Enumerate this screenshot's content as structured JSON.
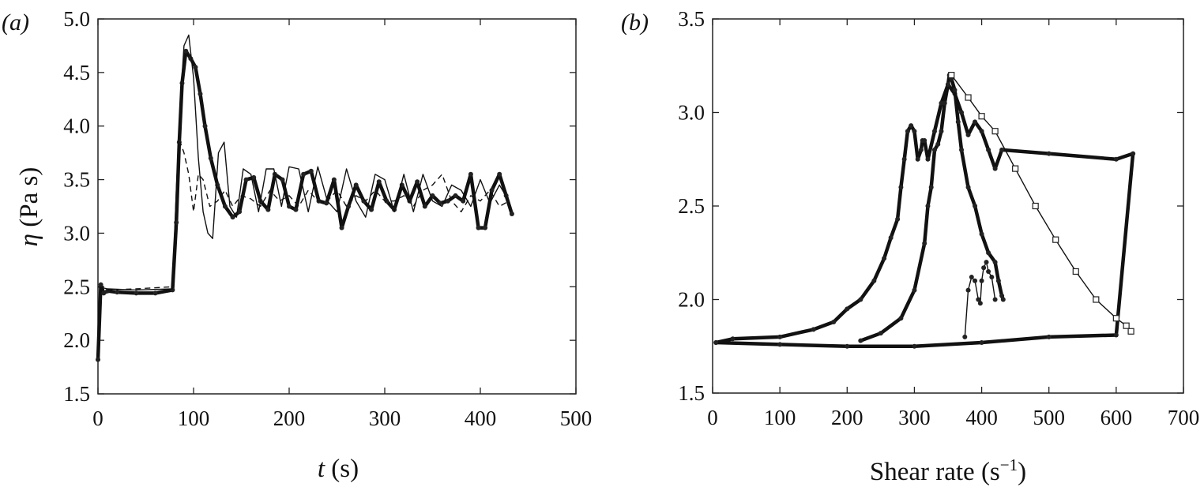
{
  "chart_data": [
    {
      "panel_label": "(a)",
      "type": "line",
      "xlabel_symbol": "t",
      "xlabel_unit": " (s)",
      "ylabel_symbol": "η",
      "ylabel_unit": " (Pa s)",
      "xlim": [
        0,
        500
      ],
      "ylim": [
        1.5,
        5.0
      ],
      "x_ticks": [
        0,
        100,
        200,
        300,
        400,
        500
      ],
      "y_ticks": [
        1.5,
        2.0,
        2.5,
        3.0,
        3.5,
        4.0,
        4.5,
        5.0
      ],
      "y_tick_labels": [
        "1.5",
        "2.0",
        "2.5",
        "3.0",
        "3.5",
        "4.0",
        "4.5",
        "5.0"
      ],
      "grid": false,
      "series": [
        {
          "style": "thick line with star markers",
          "x": [
            0,
            3,
            6,
            10,
            20,
            40,
            60,
            78,
            82,
            85,
            88,
            92,
            97,
            102,
            107,
            112,
            118,
            125,
            133,
            141,
            148,
            155,
            163,
            170,
            178,
            185,
            193,
            200,
            207,
            215,
            223,
            231,
            239,
            247,
            255,
            262,
            270,
            278,
            286,
            294,
            302,
            310,
            318,
            326,
            334,
            342,
            350,
            358,
            366,
            374,
            382,
            390,
            398,
            405,
            412,
            420,
            427,
            433
          ],
          "y": [
            1.82,
            2.52,
            2.44,
            2.46,
            2.45,
            2.44,
            2.44,
            2.47,
            3.1,
            3.85,
            4.4,
            4.7,
            4.63,
            4.55,
            4.3,
            4.0,
            3.7,
            3.45,
            3.25,
            3.15,
            3.2,
            3.5,
            3.52,
            3.3,
            3.22,
            3.55,
            3.5,
            3.25,
            3.22,
            3.55,
            3.58,
            3.3,
            3.28,
            3.5,
            3.05,
            3.25,
            3.45,
            3.3,
            3.22,
            3.48,
            3.3,
            3.22,
            3.45,
            3.3,
            3.48,
            3.25,
            3.35,
            3.28,
            3.3,
            3.35,
            3.3,
            3.55,
            3.05,
            3.05,
            3.4,
            3.55,
            3.35,
            3.18
          ]
        },
        {
          "style": "thin solid line",
          "x": [
            0,
            10,
            40,
            78,
            82,
            86,
            90,
            95,
            100,
            105,
            110,
            115,
            120,
            126,
            132,
            138,
            145,
            152,
            160,
            168,
            176,
            184,
            192,
            200,
            210,
            220,
            230,
            240,
            250,
            260,
            270,
            280,
            290,
            300,
            310,
            320,
            330,
            340,
            350,
            360,
            370,
            380,
            390,
            400,
            410,
            420,
            430
          ],
          "y": [
            2.5,
            2.48,
            2.47,
            2.48,
            3.4,
            4.2,
            4.75,
            4.85,
            4.45,
            3.7,
            3.2,
            3.0,
            2.95,
            3.75,
            3.85,
            3.25,
            3.15,
            3.6,
            3.55,
            3.2,
            3.6,
            3.6,
            3.25,
            3.62,
            3.6,
            3.2,
            3.62,
            3.3,
            3.2,
            3.6,
            3.3,
            3.15,
            3.55,
            3.5,
            3.2,
            3.55,
            3.2,
            3.55,
            3.3,
            3.25,
            3.45,
            3.4,
            3.25,
            3.5,
            3.28,
            3.45,
            3.3
          ]
        },
        {
          "style": "thin dashed line",
          "x": [
            0,
            10,
            40,
            78,
            82,
            86,
            90,
            95,
            100,
            105,
            110,
            117,
            125,
            133,
            141,
            150,
            160,
            170,
            180,
            190,
            200,
            210,
            220,
            230,
            240,
            250,
            260,
            270,
            280,
            290,
            300,
            310,
            320,
            330,
            340,
            350,
            360,
            370,
            380,
            390,
            400,
            410,
            420,
            430
          ],
          "y": [
            2.5,
            2.47,
            2.48,
            2.5,
            3.3,
            3.85,
            3.75,
            3.55,
            3.2,
            3.55,
            3.5,
            3.25,
            3.3,
            3.4,
            3.25,
            3.35,
            3.32,
            3.25,
            3.4,
            3.3,
            3.35,
            3.25,
            3.4,
            3.3,
            3.3,
            3.4,
            3.25,
            3.35,
            3.3,
            3.4,
            3.3,
            3.3,
            3.35,
            3.25,
            3.4,
            3.45,
            3.55,
            3.3,
            3.2,
            3.35,
            3.3,
            3.4,
            3.25,
            3.3
          ]
        }
      ]
    },
    {
      "panel_label": "(b)",
      "type": "scatter",
      "xlabel": "Shear rate (s",
      "xlabel_sup": "−1",
      "xlabel_close": ")",
      "xlim": [
        0,
        700
      ],
      "ylim": [
        1.5,
        3.5
      ],
      "x_ticks": [
        0,
        100,
        200,
        300,
        400,
        500,
        600,
        700
      ],
      "y_ticks": [
        1.5,
        2.0,
        2.5,
        3.0,
        3.5
      ],
      "y_tick_labels": [
        "1.5",
        "2.0",
        "2.5",
        "3.0",
        "3.5"
      ],
      "grid": false,
      "series": [
        {
          "style": "thick filled loop",
          "x": [
            5,
            30,
            100,
            150,
            180,
            200,
            220,
            240,
            255,
            265,
            275,
            280,
            285,
            290,
            295,
            300,
            305,
            310,
            312,
            315,
            320,
            330,
            340,
            350,
            360,
            370,
            380,
            390,
            400,
            410,
            420,
            430,
            500,
            600,
            625,
            600,
            500,
            400,
            300,
            200,
            100,
            5
          ],
          "y": [
            1.77,
            1.79,
            1.8,
            1.84,
            1.88,
            1.95,
            2.0,
            2.1,
            2.22,
            2.33,
            2.43,
            2.6,
            2.75,
            2.9,
            2.93,
            2.9,
            2.75,
            2.8,
            2.85,
            2.85,
            2.75,
            2.9,
            3.05,
            3.15,
            3.1,
            3.0,
            2.88,
            2.95,
            2.9,
            2.8,
            2.7,
            2.8,
            2.78,
            2.75,
            2.78,
            1.81,
            1.8,
            1.77,
            1.75,
            1.75,
            1.76,
            1.77
          ]
        },
        {
          "style": "thick middle loop",
          "x": [
            220,
            250,
            280,
            300,
            315,
            320,
            325,
            330,
            335,
            340,
            345,
            350,
            352,
            355,
            360,
            365,
            370,
            380,
            390,
            400,
            410,
            420,
            425,
            430,
            432
          ],
          "y": [
            1.78,
            1.82,
            1.9,
            2.05,
            2.3,
            2.5,
            2.6,
            2.8,
            2.83,
            2.9,
            3.05,
            3.15,
            3.2,
            3.18,
            3.12,
            2.95,
            2.8,
            2.6,
            2.5,
            2.35,
            2.25,
            2.2,
            2.1,
            2.02,
            2.0
          ]
        },
        {
          "style": "inner loop",
          "x": [
            375,
            380,
            385,
            390,
            395,
            398,
            400,
            403,
            407,
            410,
            415,
            420
          ],
          "y": [
            1.8,
            2.05,
            2.12,
            2.1,
            2.0,
            1.98,
            2.1,
            2.17,
            2.2,
            2.15,
            2.12,
            2.0
          ]
        },
        {
          "style": "thin line with square markers",
          "x": [
            355,
            380,
            400,
            420,
            450,
            480,
            510,
            540,
            570,
            600,
            615,
            622
          ],
          "y": [
            3.2,
            3.08,
            2.98,
            2.9,
            2.7,
            2.5,
            2.32,
            2.15,
            2.0,
            1.9,
            1.86,
            1.83
          ]
        }
      ]
    }
  ]
}
